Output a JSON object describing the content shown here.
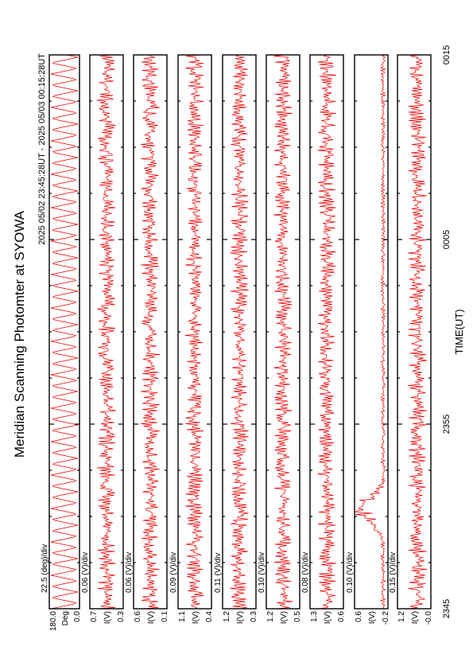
{
  "header": {
    "title": "Meridian Scanning Photomter at SYOWA",
    "time_range": "2025 05/02 23:45:28UT - 2025 05/03 00:15:28UT"
  },
  "panels": [
    {
      "scale": "22.5 (deg)/div",
      "top": "180.0",
      "unit": "Deg",
      "bottom": "0.0"
    },
    {
      "scale": "0.06 (V)/div",
      "top": "0.7",
      "unit": "I(V)",
      "bottom": "0.3"
    },
    {
      "scale": "0.06 (V)/div",
      "top": "0.6",
      "unit": "I(V)",
      "bottom": "0.1"
    },
    {
      "scale": "0.09 (V)/div",
      "top": "1.1",
      "unit": "I(V)",
      "bottom": "0.4"
    },
    {
      "scale": "0.11 (V)/div",
      "top": "1.2",
      "unit": "I(V)",
      "bottom": "0.3"
    },
    {
      "scale": "0.10 (V)/div",
      "top": "1.2",
      "unit": "I(V)",
      "bottom": "0.5"
    },
    {
      "scale": "0.08 (V)/div",
      "top": "1.3",
      "unit": "I(V)",
      "bottom": "0.6"
    },
    {
      "scale": "0.10 (V)/div",
      "top": "0.6",
      "unit": "I(V)",
      "bottom": "-0.2"
    },
    {
      "scale": "0.15 (V)/div",
      "top": "1.2",
      "unit": "I(V)",
      "bottom": "-0.0"
    }
  ],
  "time_axis": {
    "labels": [
      "2345",
      "2355",
      "0005",
      "0015"
    ],
    "title": "TIME(UT)"
  }
}
